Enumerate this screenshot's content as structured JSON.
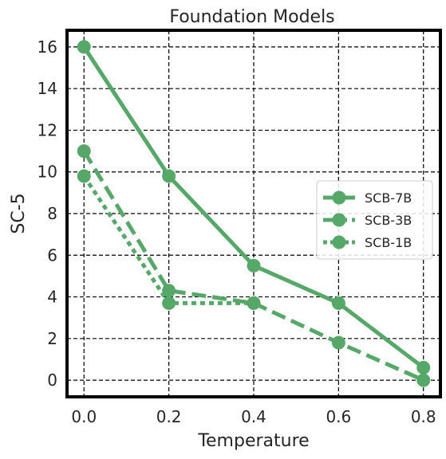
{
  "chart_data": {
    "type": "line",
    "title": "Foundation Models",
    "xlabel": "Temperature",
    "ylabel": "SC-5",
    "x": [
      0.0,
      0.2,
      0.4,
      0.6,
      0.8
    ],
    "xticks": [
      "0.0",
      "0.2",
      "0.4",
      "0.6",
      "0.8"
    ],
    "yticks": [
      "0",
      "2",
      "4",
      "6",
      "8",
      "10",
      "12",
      "14",
      "16"
    ],
    "xlim": [
      -0.04,
      0.84
    ],
    "ylim": [
      -0.8,
      16.8
    ],
    "grid": true,
    "legend_position": "center-right",
    "color": "#55a868",
    "series": [
      {
        "name": "SCB-7B",
        "style": "solid",
        "values": [
          16.0,
          9.8,
          5.5,
          3.7,
          0.6
        ]
      },
      {
        "name": "SCB-3B",
        "style": "dashed",
        "values": [
          11.0,
          4.3,
          3.7,
          1.8,
          0.0
        ]
      },
      {
        "name": "SCB-1B",
        "style": "dotted",
        "values": [
          9.8,
          3.7,
          3.7,
          null,
          null
        ]
      }
    ]
  }
}
